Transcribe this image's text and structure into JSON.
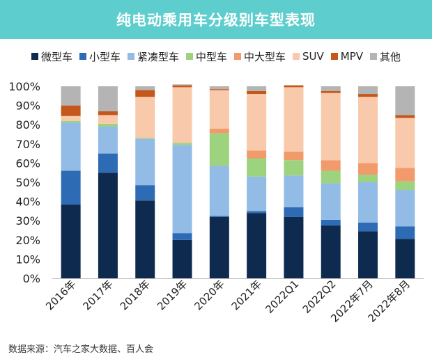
{
  "header": {
    "title": "纯电动乘用车分级别车型表现"
  },
  "source": "数据来源：汽车之家大数据、百人会",
  "chart_data": {
    "type": "bar",
    "stacked": true,
    "title": "纯电动乘用车分级别车型表现",
    "xlabel": "",
    "ylabel": "",
    "ylim": [
      0,
      100
    ],
    "yticks": [
      "0%",
      "10%",
      "20%",
      "30%",
      "40%",
      "50%",
      "60%",
      "70%",
      "80%",
      "90%",
      "100%"
    ],
    "categories": [
      "2016年",
      "2017年",
      "2018年",
      "2019年",
      "2020年",
      "2021年",
      "2022Q1",
      "2022Q2",
      "2022年7月",
      "2022年8月"
    ],
    "series": [
      {
        "name": "微型车",
        "color": "#0f2a4f",
        "values": [
          38.5,
          55,
          40.5,
          20,
          32,
          34,
          32,
          27.5,
          24.5,
          20.5
        ]
      },
      {
        "name": "小型车",
        "color": "#2e6bb5",
        "values": [
          17.5,
          10,
          8,
          3.5,
          0.5,
          1,
          5,
          3,
          4.5,
          6.5
        ]
      },
      {
        "name": "紧凑型车",
        "color": "#92bbe6",
        "values": [
          25,
          14,
          24,
          46,
          26,
          18,
          16.5,
          19,
          21,
          19
        ]
      },
      {
        "name": "中型车",
        "color": "#9dd37f",
        "values": [
          1,
          1.5,
          0.5,
          1,
          17,
          9.5,
          8,
          6.5,
          4,
          4.5
        ]
      },
      {
        "name": "中大型车",
        "color": "#f19a6b",
        "values": [
          0,
          0,
          0,
          0,
          2.5,
          4,
          4.5,
          5.5,
          6,
          7
        ]
      },
      {
        "name": "SUV",
        "color": "#f8c9aa",
        "values": [
          2.5,
          4.5,
          21.5,
          29,
          20,
          29.5,
          33.5,
          35,
          34.5,
          26
        ]
      },
      {
        "name": "MPV",
        "color": "#c4571b",
        "values": [
          5.5,
          2,
          3.5,
          1,
          0.5,
          1.5,
          1,
          1,
          1.5,
          1.5
        ]
      },
      {
        "name": "其他",
        "color": "#b4b4b4",
        "values": [
          10,
          13,
          2,
          0.5,
          1.5,
          2.5,
          0,
          2.5,
          4,
          15
        ]
      }
    ]
  }
}
